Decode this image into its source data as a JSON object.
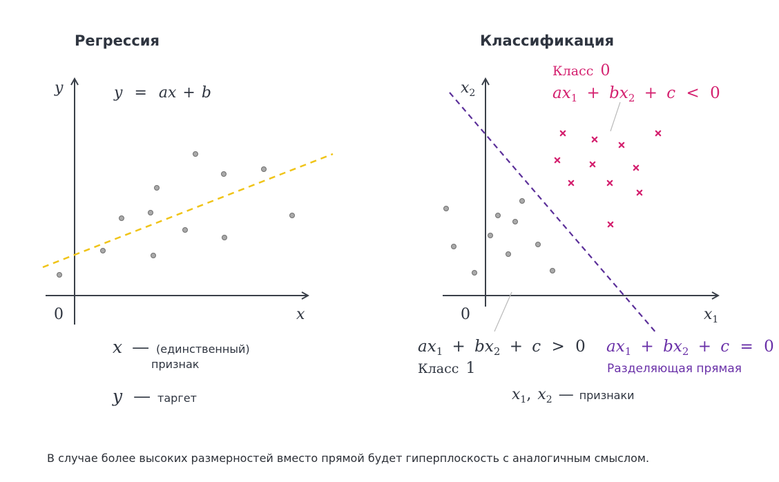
{
  "colors": {
    "axis": "#3a4049",
    "text": "#2f3540",
    "point_fill": "#a9a9a9",
    "point_stroke": "#6f6f6f",
    "regression_line": "#f0c419",
    "separator_line": "#5b2f99",
    "class0": "#d4216f",
    "separator_label": "#6a31a8",
    "leader": "#b9b9b9"
  },
  "icons": {
    "class0_marker": "cross-icon",
    "class1_marker": "circle-icon"
  },
  "regression": {
    "title": "Регрессия",
    "y_label": "y",
    "x_label": "x",
    "origin_label": "0",
    "equation": {
      "lhs": "y",
      "eq": "=",
      "rhs_a": "ax",
      "plus": "+",
      "rhs_b": "b"
    },
    "x_desc": {
      "sym": "x",
      "dash": "—",
      "line1": "(единственный)",
      "line2": "признак"
    },
    "y_desc": {
      "sym": "y",
      "dash": "—",
      "text": "таргет"
    },
    "points_count": 12
  },
  "classification": {
    "title": "Классификация",
    "x1_label": {
      "base": "x",
      "sub": "1"
    },
    "x2_label": {
      "base": "x",
      "sub": "2"
    },
    "origin_label": "0",
    "class0": {
      "name": "Класс",
      "num": "0",
      "ineq": {
        "a": "ax",
        "s1": "1",
        "plus1": "+",
        "b": "bx",
        "s2": "2",
        "plus2": "+",
        "c": "c",
        "op": "<",
        "rhs": "0"
      }
    },
    "class1": {
      "name": "Класс",
      "num": "1",
      "ineq": {
        "a": "ax",
        "s1": "1",
        "plus1": "+",
        "b": "bx",
        "s2": "2",
        "plus2": "+",
        "c": "c",
        "op": ">",
        "rhs": "0"
      }
    },
    "separator": {
      "eq": {
        "a": "ax",
        "s1": "1",
        "plus1": "+",
        "b": "bx",
        "s2": "2",
        "plus2": "+",
        "c": "c",
        "op": "=",
        "rhs": "0"
      },
      "label": "Разделяющая прямая"
    },
    "features": {
      "x1": "x",
      "s1": "1",
      "comma": ",",
      "x2": "x",
      "s2": "2",
      "dash": "—",
      "text": "признаки"
    }
  },
  "caption": "В случае более высоких размерностей вместо прямой будет гиперплоскость с аналогичным смыслом."
}
